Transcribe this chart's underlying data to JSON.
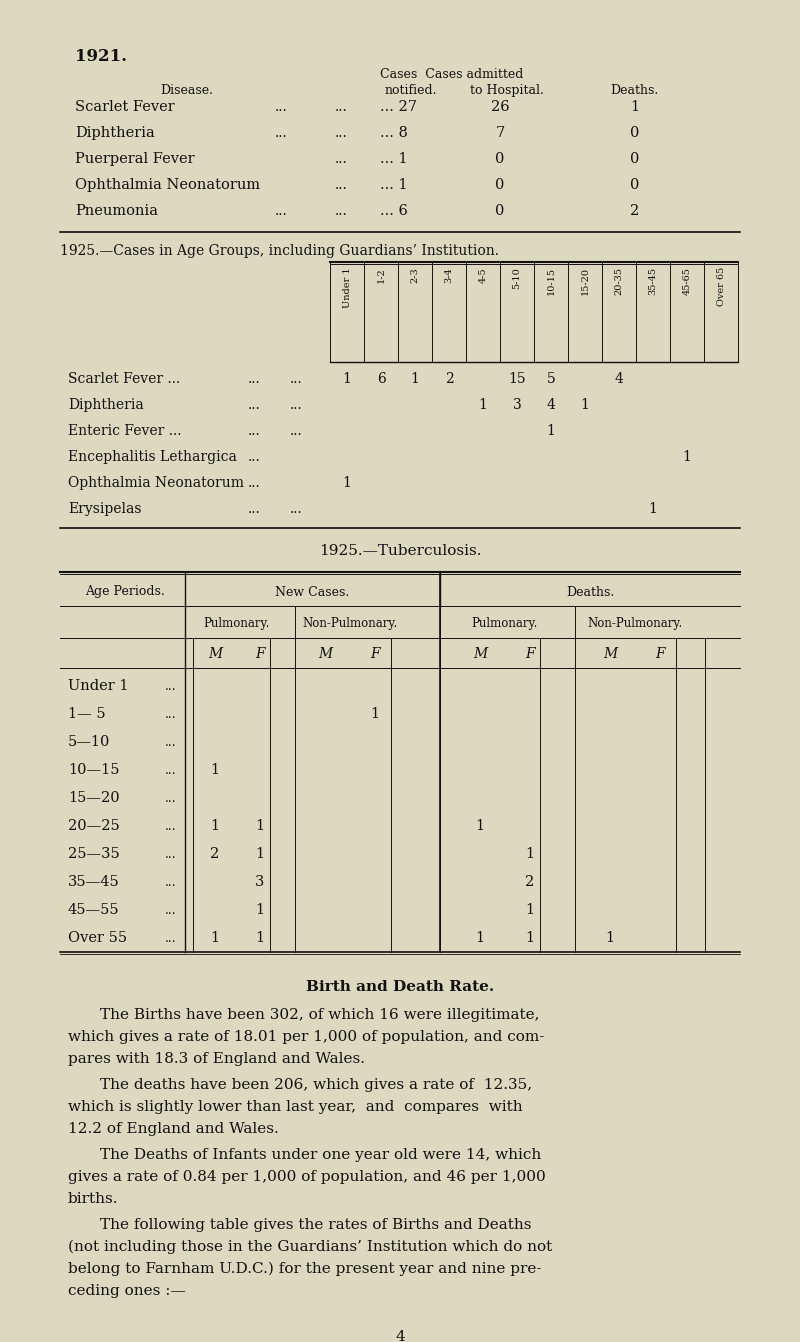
{
  "bg_color": "#ddd8c0",
  "text_color": "#111111",
  "page_title": "1921.",
  "section1_rows": [
    [
      "Scarlet Fever",
      "...",
      "...",
      "... 27",
      "26",
      "1"
    ],
    [
      "Diphtheria",
      "...",
      "...",
      "... 8",
      "7",
      "0"
    ],
    [
      "Puerperal Fever",
      "",
      "...",
      "... 1",
      "0",
      "0"
    ],
    [
      "Ophthalmia Neonatorum",
      "",
      "...",
      "... 1",
      "0",
      "0"
    ],
    [
      "Pneumonia",
      "...",
      "...",
      "... 6",
      "0",
      "2"
    ]
  ],
  "section2_title": "1925.—Cases in Age Groups, including Guardians’ Institution.",
  "section2_age_cols": [
    "Under 1",
    "1-2",
    "2-3",
    "3-4",
    "4-5",
    "5-10",
    "10-15",
    "15-20",
    "20-35",
    "35-45",
    "45-65",
    "Over 65"
  ],
  "section2_rows": [
    {
      "disease": "Scarlet Fever ...",
      "dots1": "...",
      "dots2": "...",
      "values": {
        "Under 1": 1,
        "1-2": 6,
        "2-3": 1,
        "3-4": 2,
        "5-10": 15,
        "10-15": 5,
        "20-35": 4
      }
    },
    {
      "disease": "Diphtheria",
      "dots1": "...",
      "dots2": "...",
      "values": {
        "4-5": 1,
        "5-10": 3,
        "10-15": 4,
        "15-20": 1
      }
    },
    {
      "disease": "Enteric Fever ...",
      "dots1": "...",
      "dots2": "...",
      "values": {
        "10-15": 1
      }
    },
    {
      "disease": "Encephalitis Lethargica",
      "dots1": "...",
      "dots2": "",
      "values": {
        "45-65": 1
      }
    },
    {
      "disease": "Ophthalmia Neonatorum",
      "dots1": "...",
      "dots2": "",
      "values": {
        "Under 1": 1
      }
    },
    {
      "disease": "Erysipelas",
      "dots1": "...",
      "dots2": "...",
      "values": {
        "35-45": 1
      }
    }
  ],
  "section3_title": "1925.—Tuberculosis.",
  "section3_age_periods": [
    "Under 1",
    "1— 5",
    "5—10",
    "10—15",
    "15—20",
    "20—25",
    "25—35",
    "35—45",
    "45—55",
    "Over 55"
  ],
  "section3_new_cases_pulm_M": [
    0,
    0,
    0,
    1,
    0,
    1,
    2,
    0,
    0,
    1
  ],
  "section3_new_cases_pulm_F": [
    0,
    0,
    0,
    0,
    0,
    1,
    1,
    3,
    1,
    1
  ],
  "section3_new_cases_nonpulm_M": [
    0,
    0,
    0,
    0,
    0,
    0,
    0,
    0,
    0,
    0
  ],
  "section3_new_cases_nonpulm_F": [
    0,
    1,
    0,
    0,
    0,
    0,
    0,
    0,
    0,
    0
  ],
  "section3_deaths_pulm_M": [
    0,
    0,
    0,
    0,
    0,
    1,
    0,
    0,
    0,
    1
  ],
  "section3_deaths_pulm_F": [
    0,
    0,
    0,
    0,
    0,
    0,
    1,
    2,
    1,
    1
  ],
  "section3_deaths_nonpulm_M": [
    0,
    0,
    0,
    0,
    0,
    0,
    0,
    0,
    0,
    1
  ],
  "section3_deaths_nonpulm_F": [
    0,
    0,
    0,
    0,
    0,
    0,
    0,
    0,
    0,
    0
  ],
  "birth_death_title": "Birth and Death Rate.",
  "birth_death_paragraphs": [
    {
      "indent": true,
      "lines": [
        "The Births have been 302, of which 16 were illegitimate,",
        "which gives a rate of 18.01 per 1,000 of population, and com-",
        "pares with 18.3 of England and Wales."
      ]
    },
    {
      "indent": true,
      "lines": [
        "The deaths have been 206, which gives a rate of  12.35,",
        "which is slightly lower than last year,  and  compares  with",
        "12.2 of England and Wales."
      ]
    },
    {
      "indent": true,
      "lines": [
        "The Deaths of Infants under one year old were 14, which",
        "gives a rate of 0.84 per 1,000 of population, and 46 per 1,000",
        "births."
      ]
    },
    {
      "indent": true,
      "lines": [
        "The following table gives the rates of Births and Deaths",
        "(not including those in the Guardians’ Institution which do not",
        "belong to Farnham U.D.C.) for the present year and nine pre-",
        "ceding ones :—"
      ]
    }
  ],
  "page_number": "4"
}
